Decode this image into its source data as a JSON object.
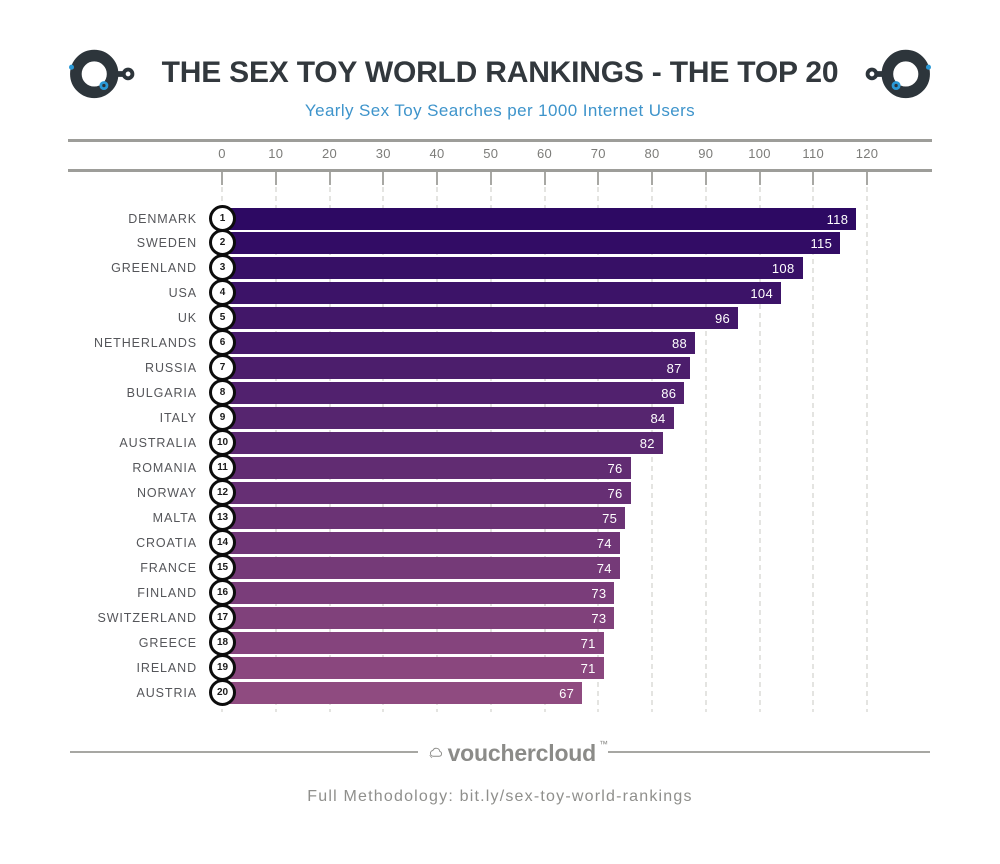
{
  "header": {
    "title": "THE SEX TOY WORLD RANKINGS - THE TOP 20",
    "subtitle": "Yearly Sex Toy Searches per 1000 Internet Users",
    "title_color": "#32383d",
    "subtitle_color": "#3e94cb",
    "handcuff_color": "#2d353b",
    "handcuff_accent_color": "#2b99d6"
  },
  "chart_data": {
    "type": "bar",
    "orientation": "horizontal",
    "title": "THE SEX TOY WORLD RANKINGS - THE TOP 20",
    "subtitle": "Yearly Sex Toy Searches per 1000 Internet Users",
    "xlabel": "Yearly Sex Toy Searches per 1000 Internet Users",
    "axis_ticks": [
      0,
      10,
      20,
      30,
      40,
      50,
      60,
      70,
      80,
      90,
      100,
      110,
      120
    ],
    "xlim": [
      0,
      120
    ],
    "grid": "dashed vertical at each tick",
    "value_label_color": "#ffffff",
    "bar_color_gradient": [
      "#2d0963",
      "#8f4b80"
    ],
    "rows": [
      {
        "rank": 1,
        "country": "DENMARK",
        "value": 118,
        "color": "#2d0963"
      },
      {
        "rank": 2,
        "country": "SWEDEN",
        "value": 115,
        "color": "#320c65"
      },
      {
        "rank": 3,
        "country": "GREENLAND",
        "value": 108,
        "color": "#371066"
      },
      {
        "rank": 4,
        "country": "USA",
        "value": 104,
        "color": "#3c1368"
      },
      {
        "rank": 5,
        "country": "UK",
        "value": 96,
        "color": "#421769"
      },
      {
        "rank": 6,
        "country": "NETHERLANDS",
        "value": 88,
        "color": "#471a6b"
      },
      {
        "rank": 7,
        "country": "RUSSIA",
        "value": 87,
        "color": "#4c1e6c"
      },
      {
        "rank": 8,
        "country": "BULGARIA",
        "value": 86,
        "color": "#51216e"
      },
      {
        "rank": 9,
        "country": "ITALY",
        "value": 84,
        "color": "#56256f"
      },
      {
        "rank": 10,
        "country": "AUSTRALIA",
        "value": 82,
        "color": "#5b2871"
      },
      {
        "rank": 11,
        "country": "ROMANIA",
        "value": 76,
        "color": "#612c72"
      },
      {
        "rank": 12,
        "country": "NORWAY",
        "value": 76,
        "color": "#662f74"
      },
      {
        "rank": 13,
        "country": "MALTA",
        "value": 75,
        "color": "#6b3375"
      },
      {
        "rank": 14,
        "country": "CROATIA",
        "value": 74,
        "color": "#703677"
      },
      {
        "rank": 15,
        "country": "FRANCE",
        "value": 74,
        "color": "#753a78"
      },
      {
        "rank": 16,
        "country": "FINLAND",
        "value": 73,
        "color": "#7a3d7a"
      },
      {
        "rank": 17,
        "country": "SWITZERLAND",
        "value": 73,
        "color": "#80417b"
      },
      {
        "rank": 18,
        "country": "GREECE",
        "value": 71,
        "color": "#85447d"
      },
      {
        "rank": 19,
        "country": "IRELAND",
        "value": 71,
        "color": "#8a477e"
      },
      {
        "rank": 20,
        "country": "AUSTRIA",
        "value": 67,
        "color": "#8f4b80"
      }
    ]
  },
  "footer": {
    "logo_text": "vouchercloud",
    "logo_tm": "™",
    "logo_color": "#8b8b88",
    "methodology": "Full Methodology: bit.ly/sex-toy-world-rankings"
  }
}
